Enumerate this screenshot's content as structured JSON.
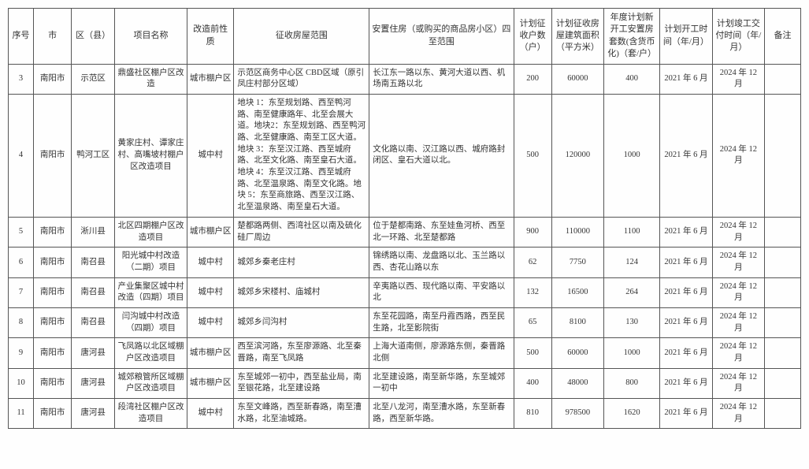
{
  "table": {
    "columns": [
      "序号",
      "市",
      "区（县）",
      "项目名称",
      "改造前性质",
      "征收房屋范围",
      "安置住房（或购买的商品房小区）四至范围",
      "计划征收户数（户）",
      "计划征收房屋建筑面积（平方米）",
      "年度计划新开工安置房套数(含货币化)（套/户）",
      "计划开工时间（年/月）",
      "计划竣工交付时间（年/月）",
      "备注"
    ],
    "col_keys": [
      "seq",
      "city",
      "county",
      "proj",
      "nature",
      "scope",
      "housing",
      "hh",
      "area",
      "sets",
      "start",
      "end",
      "remark"
    ],
    "rows": [
      {
        "seq": "3",
        "city": "南阳市",
        "county": "示范区",
        "proj": "鼎盛社区棚户区改造",
        "nature": "城市棚户区",
        "scope": "示范区商务中心区 CBD区域（原引凤庄村部分区域）",
        "housing": "长江东一路以东、黄河大道以西、机场南五路以北",
        "hh": "200",
        "area": "60000",
        "sets": "400",
        "start": "2021 年 6 月",
        "end": "2024 年 12 月",
        "remark": ""
      },
      {
        "seq": "4",
        "city": "南阳市",
        "county": "鸭河工区",
        "proj": "黄家庄村、谭家庄村、高嘴坡村棚户区改造项目",
        "nature": "城中村",
        "scope": "地块 1：东至规划路、西至鸭河路、南至健康路年、北至会展大道。地块2：东至规划路、西至鸭河路、北至健康路、南至工区大道。地块 3：东至汉江路、西至城府路、北至文化路、南至皇石大道。地块 4：东至汉江路、西至城府路、北至温泉路、南至文化路。地块 5：东至商旅路、西至汉江路、北至温泉路、南至皇石大道。",
        "housing": "文化路以南、汉江路以西、城府路封闭区、皇石大道以北。",
        "hh": "500",
        "area": "120000",
        "sets": "1000",
        "start": "2021 年 6 月",
        "end": "2024 年 12 月",
        "remark": ""
      },
      {
        "seq": "5",
        "city": "南阳市",
        "county": "淅川县",
        "proj": "北区四期棚户区改造项目",
        "nature": "城市棚户区",
        "scope": "楚都路两侧、西湾社区以南及硫化硅厂周边",
        "housing": "位于楚都南路、东至娃鱼河桥、西至北一环路、北至楚都路",
        "hh": "900",
        "area": "110000",
        "sets": "1100",
        "start": "2021 年 6 月",
        "end": "2024 年 12 月",
        "remark": ""
      },
      {
        "seq": "6",
        "city": "南阳市",
        "county": "南召县",
        "proj": "阳光城中村改造（二期）项目",
        "nature": "城中村",
        "scope": "城郊乡秦老庄村",
        "housing": "锦绣路以南、龙盘路以北、玉兰路以西、杏花山路以东",
        "hh": "62",
        "area": "7750",
        "sets": "124",
        "start": "2021 年 6 月",
        "end": "2024 年 12 月",
        "remark": ""
      },
      {
        "seq": "7",
        "city": "南阳市",
        "county": "南召县",
        "proj": "产业集聚区城中村改造（四期）项目",
        "nature": "城中村",
        "scope": "城郊乡宋楼村、庙城村",
        "housing": "辛夷路以西、现代路以南、平安路以北",
        "hh": "132",
        "area": "16500",
        "sets": "264",
        "start": "2021 年 6 月",
        "end": "2024 年 12 月",
        "remark": ""
      },
      {
        "seq": "8",
        "city": "南阳市",
        "county": "南召县",
        "proj": "闫沟城中村改造（四期）项目",
        "nature": "城中村",
        "scope": "城郊乡闫沟村",
        "housing": "东至花园路，南至丹霞西路，西至民生路，北至影院街",
        "hh": "65",
        "area": "8100",
        "sets": "130",
        "start": "2021 年 6 月",
        "end": "2024 年 12 月",
        "remark": ""
      },
      {
        "seq": "9",
        "city": "南阳市",
        "county": "唐河县",
        "proj": "飞凤路以北区域棚户区改造项目",
        "nature": "城市棚户区",
        "scope": "西至滨河路，东至廖源路、北至秦晋路，南至飞凤路",
        "housing": "上海大道南侧，廖源路东侧，秦晋路北侧",
        "hh": "500",
        "area": "60000",
        "sets": "1000",
        "start": "2021 年 6 月",
        "end": "2024 年 12 月",
        "remark": ""
      },
      {
        "seq": "10",
        "city": "南阳市",
        "county": "唐河县",
        "proj": "城郊粮管所区域棚户区改造项目",
        "nature": "城市棚户区",
        "scope": "东至城郊一初中，西至盐业局，南至银花路，北至建设路",
        "housing": "北至建设路，南至新华路，东至城郊一初中",
        "hh": "400",
        "area": "48000",
        "sets": "800",
        "start": "2021 年 6 月",
        "end": "2024 年 12 月",
        "remark": ""
      },
      {
        "seq": "11",
        "city": "南阳市",
        "county": "唐河县",
        "proj": "段湾社区棚户区改造项目",
        "nature": "城中村",
        "scope": "东至文峰路，西至新春路，南至漕水路，北至油城路。",
        "housing": "北至八龙河，南至漕水路，东至新春路，西至新华路。",
        "hh": "810",
        "area": "978500",
        "sets": "1620",
        "start": "2021 年 6 月",
        "end": "2024 年 12 月",
        "remark": ""
      }
    ],
    "style": {
      "border_color": "#555555",
      "background_color": "#fefefe",
      "text_color": "#333333",
      "header_fontsize": 11,
      "body_fontsize": 10.5,
      "font_family": "SimSun"
    }
  }
}
